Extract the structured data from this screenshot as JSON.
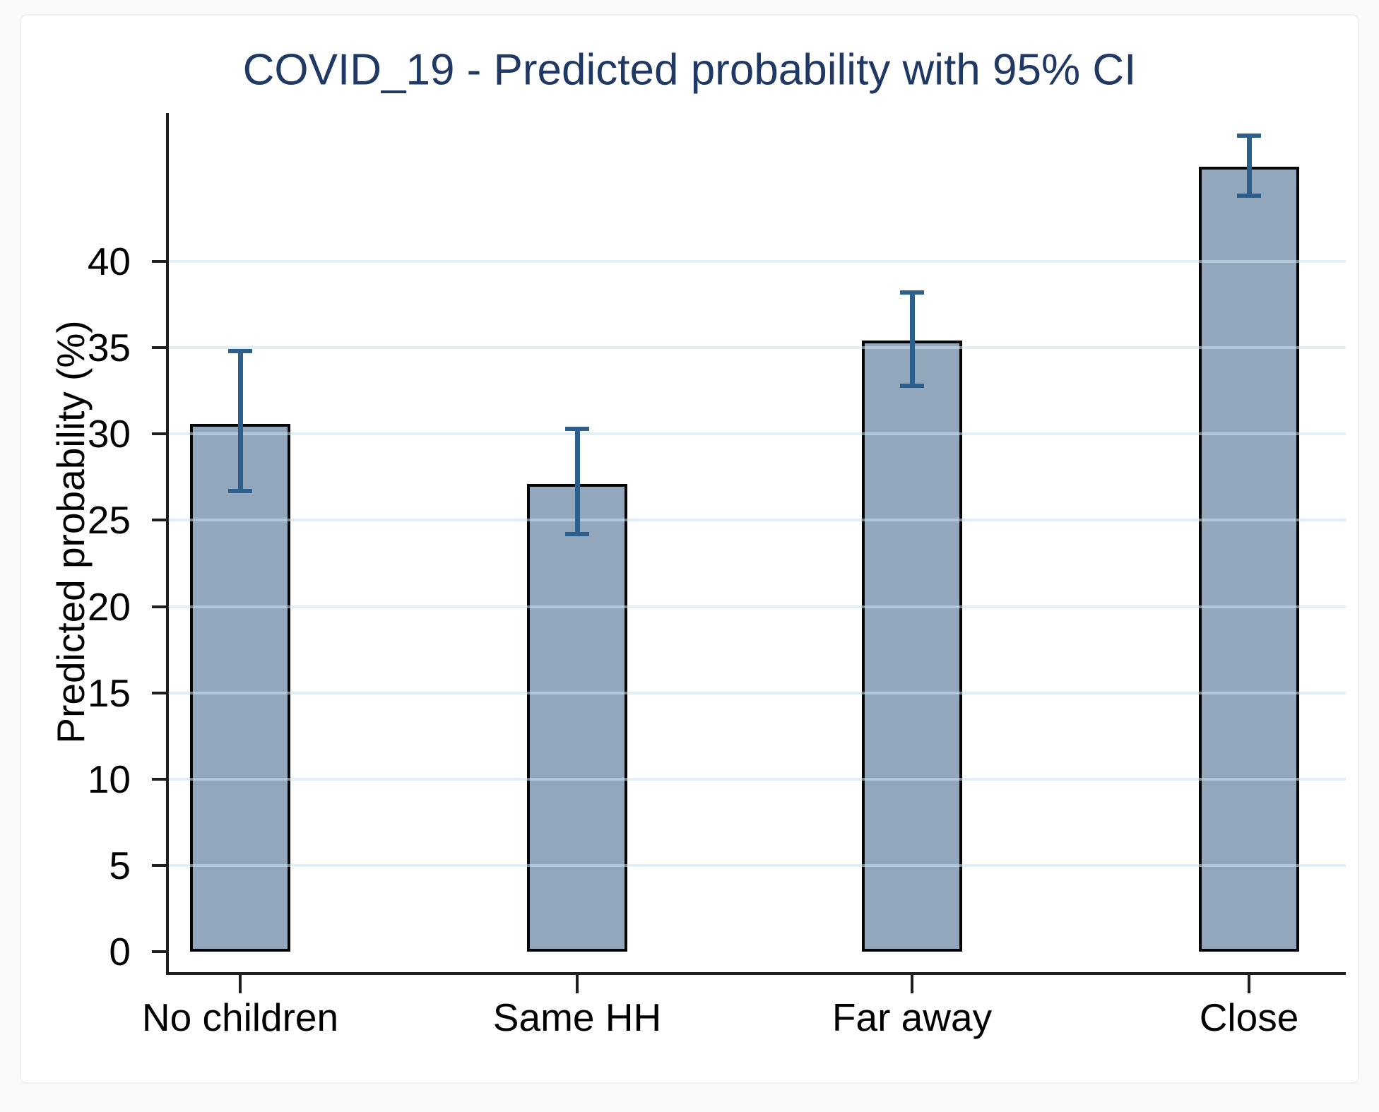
{
  "figure": {
    "background": "#ffffff",
    "page_background": "#f7f9fa"
  },
  "chart_data": {
    "type": "bar",
    "title": "COVID_19 - Predicted probability with 95% CI",
    "xlabel": "",
    "ylabel": "Predicted probability (%)",
    "categories": [
      "No children",
      "Same HH",
      "Far away",
      "Close"
    ],
    "series": [
      {
        "name": "Predicted probability (%)",
        "values": [
          30.6,
          27.1,
          35.4,
          45.5
        ],
        "ci_low": [
          26.7,
          24.2,
          32.8,
          43.8
        ],
        "ci_high": [
          34.8,
          30.3,
          38.2,
          47.3
        ]
      }
    ],
    "y_ticks": [
      0,
      5,
      10,
      15,
      20,
      25,
      30,
      35,
      40
    ],
    "ylim": [
      0,
      48.6
    ],
    "grid": true,
    "gridlines_at": [
      5,
      10,
      15,
      20,
      25,
      30,
      35,
      40
    ],
    "legend_position": "none",
    "error_bars": "95% CI",
    "colors": {
      "bar_fill": "#92a7bc",
      "bar_border": "#050505",
      "error_bar": "#2d5f8d",
      "title_text": "#1f3864",
      "axis_line": "#1f1f1f",
      "tick_text": "#000000",
      "gridline": "#e9f0f4"
    }
  }
}
